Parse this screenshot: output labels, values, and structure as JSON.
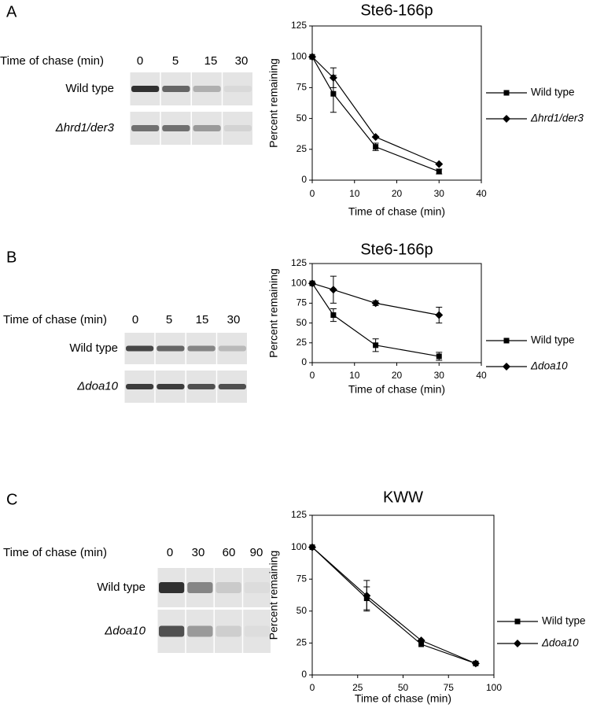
{
  "panels": [
    {
      "letter": "A",
      "gel": {
        "header": "Time of chase (min)",
        "lanes": [
          "0",
          "5",
          "15",
          "30"
        ],
        "rows": [
          "Wild type",
          "Δhrd1/der3"
        ]
      }
    },
    {
      "letter": "B",
      "gel": {
        "header": "Time of chase (min)",
        "lanes": [
          "0",
          "5",
          "15",
          "30"
        ],
        "rows": [
          "Wild type",
          "Δdoa10"
        ]
      }
    },
    {
      "letter": "C",
      "gel": {
        "header": "Time of chase (min)",
        "lanes": [
          "0",
          "30",
          "60",
          "90"
        ],
        "rows": [
          "Wild type",
          "Δdoa10"
        ]
      }
    }
  ],
  "chart_data": [
    {
      "type": "line",
      "title": "Ste6-166p",
      "x_label": "Time of chase (min)",
      "y_label": "Percent remaining",
      "x": [
        0,
        5,
        15,
        30
      ],
      "xlim": [
        0,
        40
      ],
      "xticks": [
        0,
        10,
        20,
        30,
        40
      ],
      "ylim": [
        0,
        125
      ],
      "yticks": [
        0,
        25,
        50,
        75,
        100,
        125
      ],
      "series": [
        {
          "name": "Wild type",
          "color": "#000000",
          "marker": "square",
          "values": [
            100,
            70,
            27,
            7
          ],
          "errors": [
            null,
            15,
            3,
            2
          ]
        },
        {
          "name": "Δhrd1/der3",
          "color": "#000000",
          "marker": "diamond",
          "values": [
            100,
            83,
            35,
            13
          ],
          "errors": [
            null,
            8,
            null,
            null
          ]
        }
      ],
      "legend": "right"
    },
    {
      "type": "line",
      "title": "Ste6-166p",
      "x_label": "Time of chase (min)",
      "y_label": "Percent remaining",
      "x": [
        0,
        5,
        15,
        30
      ],
      "xlim": [
        0,
        40
      ],
      "xticks": [
        0,
        10,
        20,
        30,
        40
      ],
      "ylim": [
        0,
        125
      ],
      "yticks": [
        0,
        25,
        50,
        75,
        100,
        125
      ],
      "series": [
        {
          "name": "Wild type",
          "color": "#000000",
          "marker": "square",
          "values": [
            100,
            60,
            22,
            8
          ],
          "errors": [
            null,
            8,
            8,
            5
          ]
        },
        {
          "name": "Δdoa10",
          "color": "#000000",
          "marker": "diamond",
          "values": [
            100,
            92,
            75,
            60
          ],
          "errors": [
            null,
            17,
            3,
            10
          ]
        }
      ],
      "legend": "right"
    },
    {
      "type": "line",
      "title": "KWW",
      "x_label": "Time of chase (min)",
      "y_label": "Percent remaining",
      "x": [
        0,
        30,
        60,
        90
      ],
      "xlim": [
        0,
        100
      ],
      "xticks": [
        0,
        25,
        50,
        75,
        100
      ],
      "ylim": [
        0,
        125
      ],
      "yticks": [
        0,
        25,
        50,
        75,
        100,
        125
      ],
      "series": [
        {
          "name": "Wild type",
          "color": "#000000",
          "marker": "square",
          "values": [
            100,
            60,
            24,
            9
          ],
          "errors": [
            null,
            9,
            null,
            null
          ]
        },
        {
          "name": "Δdoa10",
          "color": "#000000",
          "marker": "diamond",
          "values": [
            100,
            62,
            27,
            9
          ],
          "errors": [
            null,
            12,
            null,
            null
          ]
        }
      ],
      "legend": "right"
    }
  ]
}
